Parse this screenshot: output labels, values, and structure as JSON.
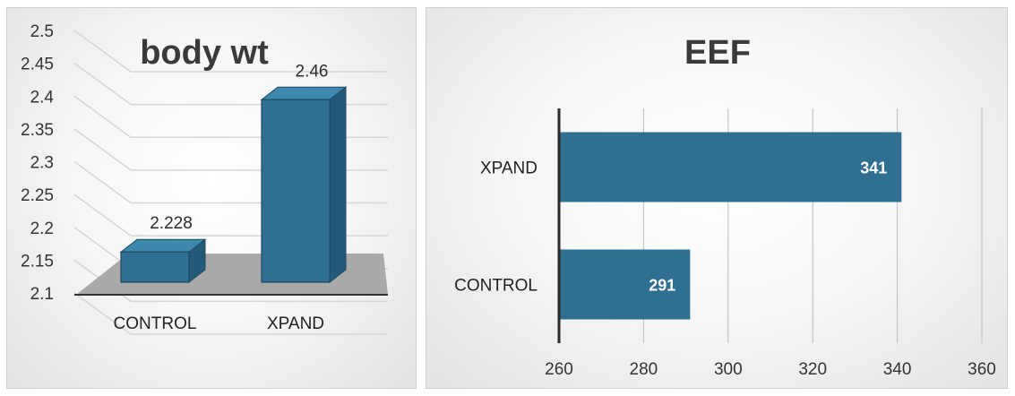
{
  "chart_data": [
    {
      "type": "bar",
      "title": "body wt",
      "categories": [
        "CONTROL",
        "XPAND"
      ],
      "values": [
        2.228,
        2.46
      ],
      "data_labels": [
        "2.228",
        "2.46"
      ],
      "y_ticks": [
        "2.1",
        "2.15",
        "2.2",
        "2.25",
        "2.3",
        "2.35",
        "2.4",
        "2.45",
        "2.5"
      ],
      "ylim": [
        2.1,
        2.5
      ],
      "grid": true,
      "style": "3d-column",
      "color": "#2f6f91"
    },
    {
      "type": "bar",
      "orientation": "horizontal",
      "title": "EEF",
      "categories": [
        "CONTROL",
        "XPAND"
      ],
      "values": [
        291,
        341
      ],
      "data_labels": [
        "291",
        "341"
      ],
      "x_ticks": [
        "260",
        "280",
        "300",
        "320",
        "340",
        "360"
      ],
      "xlim": [
        260,
        360
      ],
      "grid": true,
      "color": "#2f6f91"
    }
  ]
}
